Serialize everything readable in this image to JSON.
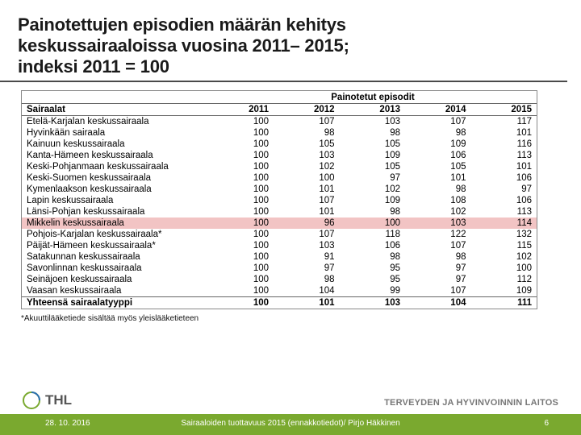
{
  "title_lines": [
    "Painotettujen episodien määrän kehitys",
    "keskussairaaloissa vuosina 2011– 2015;",
    "indeksi 2011 = 100"
  ],
  "table": {
    "super_header": "Painotetut episodit",
    "corner_label": "Sairaalat",
    "year_columns": [
      "2011",
      "2012",
      "2013",
      "2014",
      "2015"
    ],
    "rows": [
      {
        "name": "Etelä-Karjalan keskussairaala",
        "vals": [
          100,
          107,
          103,
          107,
          117
        ]
      },
      {
        "name": "Hyvinkään sairaala",
        "vals": [
          100,
          98,
          98,
          98,
          101
        ]
      },
      {
        "name": "Kainuun keskussairaala",
        "vals": [
          100,
          105,
          105,
          109,
          116
        ]
      },
      {
        "name": "Kanta-Hämeen keskussairaala",
        "vals": [
          100,
          103,
          109,
          106,
          113
        ]
      },
      {
        "name": "Keski-Pohjanmaan keskussairaala",
        "vals": [
          100,
          102,
          105,
          105,
          101
        ]
      },
      {
        "name": "Keski-Suomen keskussairaala",
        "vals": [
          100,
          100,
          97,
          101,
          106
        ]
      },
      {
        "name": "Kymenlaakson keskussairaala",
        "vals": [
          100,
          101,
          102,
          98,
          97
        ]
      },
      {
        "name": "Lapin keskussairaala",
        "vals": [
          100,
          107,
          109,
          108,
          106
        ]
      },
      {
        "name": "Länsi-Pohjan keskussairaala",
        "vals": [
          100,
          101,
          98,
          102,
          113
        ]
      },
      {
        "name": "Mikkelin keskussairaala",
        "vals": [
          100,
          96,
          100,
          103,
          114
        ],
        "highlight": true
      },
      {
        "name": "Pohjois-Karjalan keskussairaala*",
        "vals": [
          100,
          107,
          118,
          122,
          132
        ]
      },
      {
        "name": "Päijät-Hämeen keskussairaala*",
        "vals": [
          100,
          103,
          106,
          107,
          115
        ]
      },
      {
        "name": "Satakunnan keskussairaala",
        "vals": [
          100,
          91,
          98,
          98,
          102
        ]
      },
      {
        "name": "Savonlinnan keskussairaala",
        "vals": [
          100,
          97,
          95,
          97,
          100
        ]
      },
      {
        "name": "Seinäjoen keskussairaala",
        "vals": [
          100,
          98,
          95,
          97,
          112
        ]
      },
      {
        "name": "Vaasan keskussairaala",
        "vals": [
          100,
          104,
          99,
          107,
          109
        ]
      }
    ],
    "total_row": {
      "name": "Yhteensä sairaalatyyppi",
      "vals": [
        100,
        101,
        103,
        104,
        111
      ]
    },
    "footnote": "*Akuuttilääketiede sisältää myös yleislääketieteen"
  },
  "org_name": "TERVEYDEN JA HYVINVOINNIN LAITOS",
  "footer": {
    "date": "28. 10. 2016",
    "center": "Sairaaloiden tuottavuus 2015 (ennakkotiedot)/ Pirjo Häkkinen",
    "page": "6"
  },
  "theme": {
    "green": "#7aa92f",
    "highlight_row": "#f2c4c4"
  }
}
